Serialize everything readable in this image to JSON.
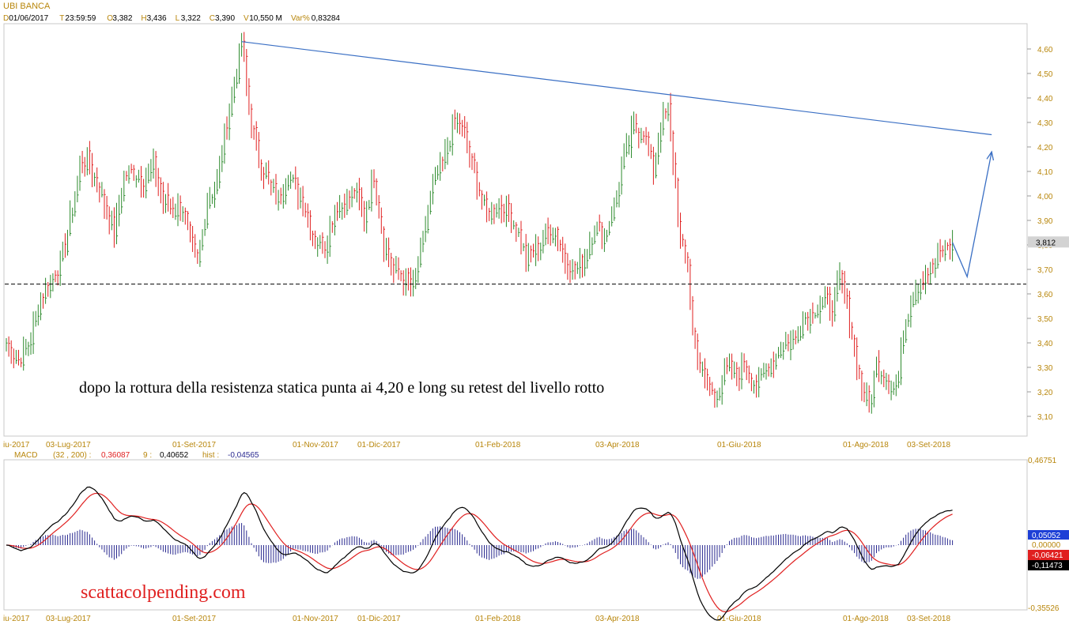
{
  "title": "UBI BANCA",
  "header": {
    "items": [
      {
        "k": "D",
        "v": "01/06/2017"
      },
      {
        "k": "T",
        "v": "23:59:59"
      },
      {
        "k": "O",
        "v": "3,382"
      },
      {
        "k": "H",
        "v": "3,436"
      },
      {
        "k": "L",
        "v": "3,322"
      },
      {
        "k": "C",
        "v": "3,390"
      },
      {
        "k": "V",
        "v": "10,550 M"
      },
      {
        "k": "Var%",
        "v": "0,83284"
      }
    ]
  },
  "annotation_text": "dopo la rottura della resistenza statica punta ai 4,20 e long su retest del livello rotto",
  "watermark": "scattacolpending.com",
  "colors": {
    "up": "#2e8b2e",
    "down": "#e02020",
    "trendline": "#3a6fc4",
    "macd_line": "#000000",
    "signal_line": "#e02020",
    "histogram": "#2a2a90",
    "axis_text": "#b8860b",
    "header_text": "#b8860b"
  },
  "x_axis_labels": [
    "iu-2017",
    "03-Lug-2017",
    "01-Set-2017",
    "01-Nov-2017",
    "01-Dic-2017",
    "01-Feb-2018",
    "03-Apr-2018",
    "01-Giu-2018",
    "01-Ago-2018",
    "03-Set-2018"
  ],
  "price_panel": {
    "y_ticks": [
      "4,60",
      "4,50",
      "4,40",
      "4,30",
      "4,20",
      "4,10",
      "4,00",
      "3,90",
      "3,80",
      "3,70",
      "3,60",
      "3,50",
      "3,40",
      "3,30",
      "3,20",
      "3,10"
    ],
    "last_price_label": "3,812"
  },
  "macd_panel": {
    "legend": {
      "name": "MACD",
      "params": "(32 , 200) :",
      "macd_value": "0,36087",
      "signal_period": "9 :",
      "signal_value": "0,40652",
      "hist_label": "hist :",
      "hist_value": "-0,04565"
    },
    "y_labels": {
      "top": "0,46751",
      "bottom": "-0,35526"
    },
    "badges": [
      {
        "text": "0,05052",
        "bg": "#1d3fd6",
        "fg": "#ffffff"
      },
      {
        "text": "0,00000",
        "bg": "#ffffff",
        "fg": "#b8860b"
      },
      {
        "text": "-0,06421",
        "bg": "#e02020",
        "fg": "#ffffff"
      },
      {
        "text": "-0,11473",
        "bg": "#000000",
        "fg": "#ffffff"
      }
    ]
  },
  "chart_data": {
    "type": "candlestick",
    "title": "UBI BANCA",
    "ylim": [
      3.05,
      4.67
    ],
    "price_anchors": [
      [
        0,
        3.4
      ],
      [
        5,
        3.32
      ],
      [
        10,
        3.42
      ],
      [
        14,
        3.58
      ],
      [
        18,
        3.66
      ],
      [
        22,
        3.72
      ],
      [
        26,
        3.9
      ],
      [
        30,
        4.12
      ],
      [
        33,
        4.15
      ],
      [
        37,
        4.05
      ],
      [
        40,
        3.96
      ],
      [
        44,
        3.85
      ],
      [
        48,
        4.08
      ],
      [
        52,
        4.1
      ],
      [
        56,
        4.06
      ],
      [
        60,
        4.12
      ],
      [
        64,
        3.98
      ],
      [
        68,
        3.94
      ],
      [
        72,
        3.96
      ],
      [
        75,
        3.8
      ],
      [
        78,
        3.72
      ],
      [
        82,
        3.98
      ],
      [
        86,
        4.05
      ],
      [
        89,
        4.25
      ],
      [
        92,
        4.4
      ],
      [
        96,
        4.63
      ],
      [
        99,
        4.35
      ],
      [
        103,
        4.15
      ],
      [
        107,
        4.05
      ],
      [
        111,
        3.98
      ],
      [
        115,
        4.1
      ],
      [
        118,
        4.03
      ],
      [
        122,
        3.94
      ],
      [
        126,
        3.82
      ],
      [
        130,
        3.8
      ],
      [
        134,
        3.95
      ],
      [
        138,
        3.97
      ],
      [
        142,
        4.02
      ],
      [
        146,
        3.92
      ],
      [
        150,
        4.08
      ],
      [
        154,
        3.8
      ],
      [
        158,
        3.69
      ],
      [
        162,
        3.66
      ],
      [
        166,
        3.63
      ],
      [
        170,
        3.82
      ],
      [
        174,
        4.05
      ],
      [
        178,
        4.12
      ],
      [
        182,
        4.28
      ],
      [
        185,
        4.3
      ],
      [
        188,
        4.2
      ],
      [
        192,
        4.05
      ],
      [
        196,
        3.93
      ],
      [
        200,
        3.96
      ],
      [
        204,
        3.94
      ],
      [
        208,
        3.88
      ],
      [
        212,
        3.74
      ],
      [
        216,
        3.78
      ],
      [
        220,
        3.84
      ],
      [
        224,
        3.86
      ],
      [
        228,
        3.73
      ],
      [
        232,
        3.7
      ],
      [
        236,
        3.75
      ],
      [
        240,
        3.88
      ],
      [
        244,
        3.83
      ],
      [
        248,
        3.96
      ],
      [
        252,
        4.15
      ],
      [
        256,
        4.28
      ],
      [
        260,
        4.26
      ],
      [
        264,
        4.1
      ],
      [
        267,
        4.3
      ],
      [
        270,
        4.35
      ],
      [
        273,
        4.05
      ],
      [
        275,
        3.8
      ],
      [
        278,
        3.72
      ],
      [
        280,
        3.45
      ],
      [
        283,
        3.3
      ],
      [
        286,
        3.22
      ],
      [
        289,
        3.18
      ],
      [
        292,
        3.25
      ],
      [
        295,
        3.3
      ],
      [
        298,
        3.26
      ],
      [
        301,
        3.32
      ],
      [
        304,
        3.25
      ],
      [
        307,
        3.23
      ],
      [
        310,
        3.3
      ],
      [
        313,
        3.33
      ],
      [
        316,
        3.38
      ],
      [
        319,
        3.4
      ],
      [
        322,
        3.42
      ],
      [
        325,
        3.5
      ],
      [
        328,
        3.52
      ],
      [
        331,
        3.55
      ],
      [
        334,
        3.57
      ],
      [
        337,
        3.55
      ],
      [
        340,
        3.66
      ],
      [
        343,
        3.55
      ],
      [
        346,
        3.38
      ],
      [
        349,
        3.2
      ],
      [
        352,
        3.15
      ],
      [
        355,
        3.3
      ],
      [
        358,
        3.28
      ],
      [
        361,
        3.22
      ],
      [
        364,
        3.25
      ],
      [
        366,
        3.45
      ],
      [
        369,
        3.58
      ],
      [
        372,
        3.64
      ],
      [
        375,
        3.68
      ],
      [
        378,
        3.7
      ],
      [
        381,
        3.76
      ],
      [
        384,
        3.8
      ],
      [
        386,
        3.81
      ]
    ],
    "trendline": {
      "from": [
        96,
        4.63
      ],
      "to": [
        402,
        4.25
      ]
    },
    "support_level": 3.64,
    "projection": [
      [
        386,
        3.81
      ],
      [
        392,
        3.67
      ],
      [
        402,
        4.18
      ]
    ],
    "macd_ylim": [
      -0.35526,
      0.46751
    ]
  }
}
